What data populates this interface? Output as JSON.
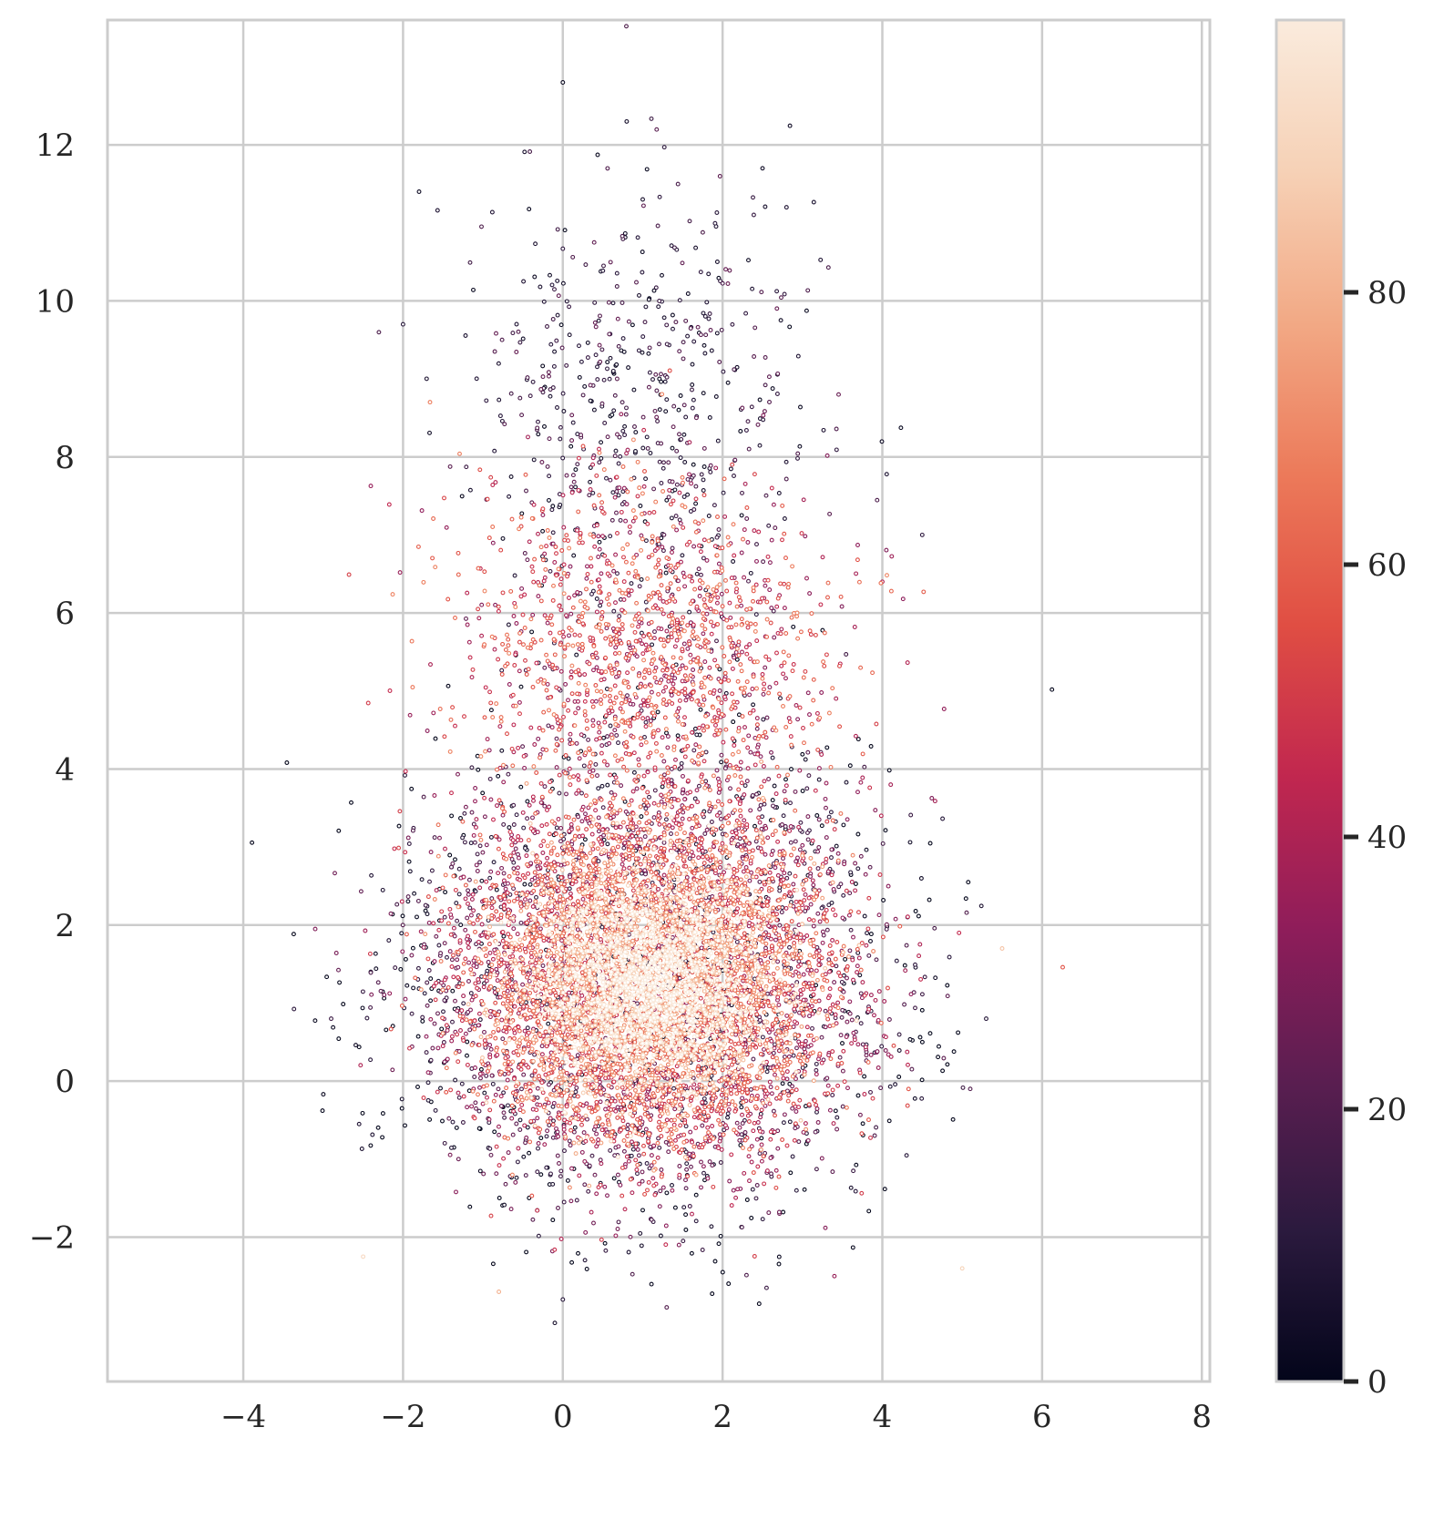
{
  "chart_data": {
    "type": "scatter",
    "title": "",
    "xlabel": "",
    "ylabel": "",
    "xlim": [
      -5.7,
      8.1
    ],
    "ylim": [
      -3.85,
      13.6
    ],
    "x_ticks": [
      -4,
      -2,
      0,
      2,
      4,
      6,
      8
    ],
    "y_ticks": [
      -2,
      0,
      2,
      4,
      6,
      8,
      10,
      12
    ],
    "x_tick_labels": [
      "−4",
      "−2",
      "0",
      "2",
      "4",
      "6",
      "8"
    ],
    "y_tick_labels": [
      "−2",
      "0",
      "2",
      "4",
      "6",
      "8",
      "10",
      "12"
    ],
    "grid": true,
    "colormap": "rocket",
    "colormap_stops": [
      "#03051a",
      "#2b1a3e",
      "#5b1e51",
      "#8f1d5a",
      "#c1274f",
      "#e04e43",
      "#ec7a5a",
      "#f2a985",
      "#f6d1b6",
      "#faebdd"
    ],
    "colorbar": {
      "range": [
        0,
        100
      ],
      "ticks": [
        0,
        20,
        40,
        60,
        80
      ],
      "tick_labels": [
        "0",
        "20",
        "40",
        "60",
        "80"
      ]
    },
    "series": [
      {
        "description_cluster": "dense core",
        "center": [
          1.1,
          1.3
        ],
        "spread": [
          1.25,
          1.2
        ],
        "count": 9000,
        "color_value_range": [
          0,
          100
        ],
        "color_by_distance_from_center": true
      },
      {
        "description_cluster": "upper plume",
        "center": [
          1.0,
          8.5
        ],
        "spread": [
          1.1,
          1.6
        ],
        "count": 600,
        "color_value_range": [
          0,
          25
        ]
      },
      {
        "description_cluster": "transition band",
        "center": [
          1.1,
          5.5
        ],
        "spread": [
          1.15,
          1.1
        ],
        "count": 1500,
        "color_value_range": [
          30,
          70
        ]
      }
    ],
    "outliers": [
      {
        "x": 0.0,
        "y": 12.8,
        "c": 2
      },
      {
        "x": 0.8,
        "y": 12.3,
        "c": 5
      },
      {
        "x": 2.5,
        "y": 11.7,
        "c": 4
      },
      {
        "x": -1.8,
        "y": 11.4,
        "c": 3
      },
      {
        "x": 1.0,
        "y": 11.3,
        "c": 6
      },
      {
        "x": 2.8,
        "y": 11.2,
        "c": 8
      },
      {
        "x": -2.0,
        "y": 9.7,
        "c": 10
      },
      {
        "x": 4.5,
        "y": 7.0,
        "c": 12
      },
      {
        "x": 4.0,
        "y": 6.4,
        "c": 40
      },
      {
        "x": -3.1,
        "y": 1.95,
        "c": 30
      },
      {
        "x": -2.9,
        "y": 0.8,
        "c": 15
      },
      {
        "x": -2.55,
        "y": -0.55,
        "c": 8
      },
      {
        "x": 5.3,
        "y": 0.8,
        "c": 10
      },
      {
        "x": 5.1,
        "y": -0.1,
        "c": 20
      },
      {
        "x": 5.0,
        "y": -2.4,
        "c": 90
      },
      {
        "x": -2.5,
        "y": -2.25,
        "c": 92
      },
      {
        "x": 0.0,
        "y": -2.8,
        "c": 10
      },
      {
        "x": -0.1,
        "y": -3.1,
        "c": 5
      },
      {
        "x": 1.3,
        "y": -2.9,
        "c": 20
      },
      {
        "x": 2.55,
        "y": -2.65,
        "c": 15
      },
      {
        "x": 3.4,
        "y": -2.5,
        "c": 35
      },
      {
        "x": -0.8,
        "y": -2.7,
        "c": 80
      },
      {
        "x": 5.5,
        "y": 1.7,
        "c": 85
      }
    ]
  }
}
